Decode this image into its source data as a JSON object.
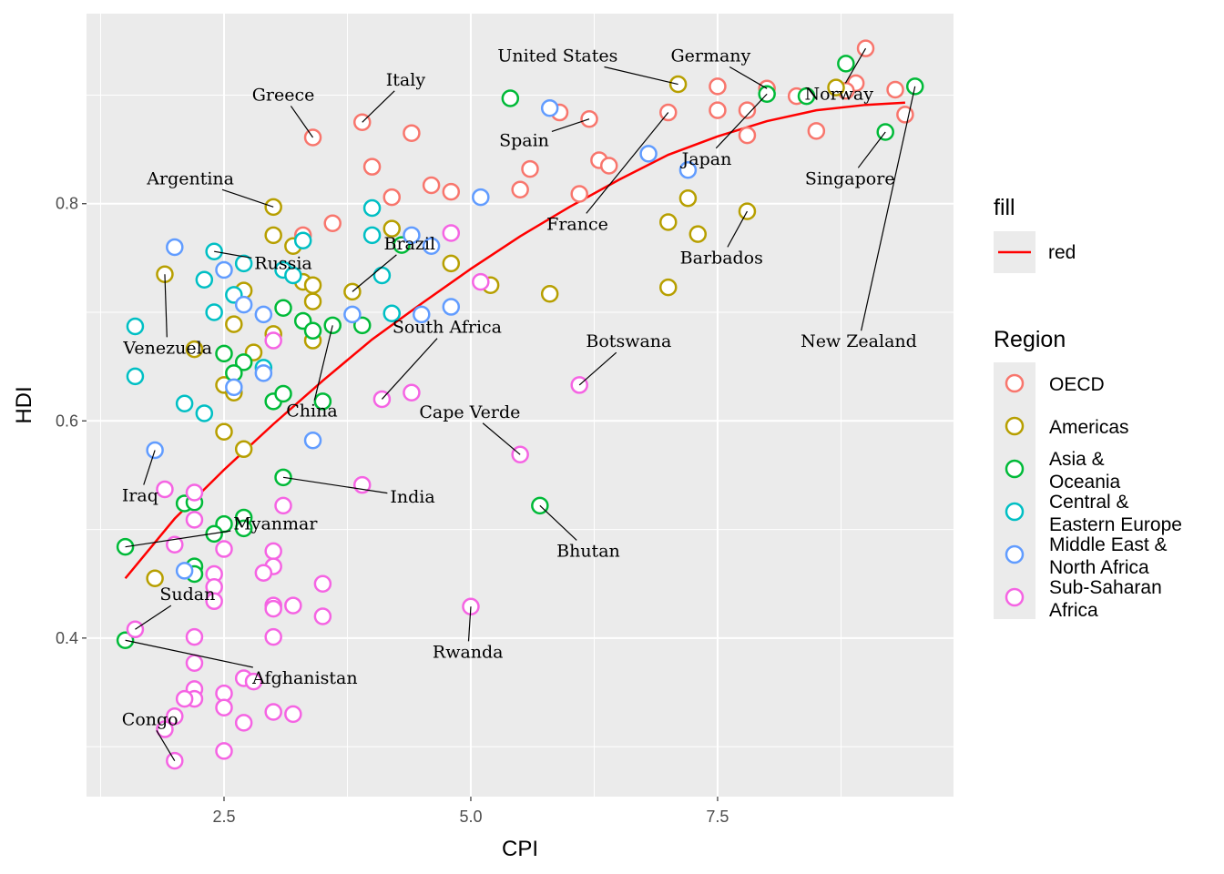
{
  "chart_data": {
    "type": "scatter",
    "xlabel": "CPI",
    "ylabel": "HDI",
    "xlim": [
      1.107,
      9.89
    ],
    "ylim": [
      0.254,
      0.975
    ],
    "xticks": [
      {
        "v": 2.5,
        "label": "2.5"
      },
      {
        "v": 5.0,
        "label": "5.0"
      },
      {
        "v": 7.5,
        "label": "7.5"
      }
    ],
    "yticks": [
      {
        "v": 0.4,
        "label": "0.4"
      },
      {
        "v": 0.6,
        "label": "0.6"
      },
      {
        "v": 0.8,
        "label": "0.8"
      }
    ],
    "grid": true,
    "series": [
      {
        "name": "OECD",
        "color": "#F8766D",
        "points": [
          [
            9.0,
            0.943
          ],
          [
            8.9,
            0.911
          ],
          [
            8.8,
            0.904
          ],
          [
            8.3,
            0.899
          ],
          [
            9.3,
            0.905
          ],
          [
            9.4,
            0.882
          ],
          [
            8.0,
            0.906
          ],
          [
            7.5,
            0.908
          ],
          [
            7.5,
            0.886
          ],
          [
            7.8,
            0.886
          ],
          [
            7.8,
            0.863
          ],
          [
            8.5,
            0.867
          ],
          [
            7.0,
            0.884
          ],
          [
            6.2,
            0.878
          ],
          [
            5.9,
            0.884
          ],
          [
            6.3,
            0.84
          ],
          [
            6.4,
            0.835
          ],
          [
            5.6,
            0.832
          ],
          [
            5.5,
            0.813
          ],
          [
            6.1,
            0.809
          ],
          [
            4.6,
            0.817
          ],
          [
            4.8,
            0.811
          ],
          [
            4.4,
            0.865
          ],
          [
            3.9,
            0.875
          ],
          [
            3.4,
            0.861
          ],
          [
            4.0,
            0.834
          ],
          [
            4.2,
            0.806
          ],
          [
            3.6,
            0.782
          ],
          [
            3.3,
            0.771
          ]
        ]
      },
      {
        "name": "Americas",
        "color": "#B79F00",
        "points": [
          [
            7.1,
            0.91
          ],
          [
            8.7,
            0.907
          ],
          [
            7.2,
            0.805
          ],
          [
            7.0,
            0.783
          ],
          [
            7.8,
            0.793
          ],
          [
            7.3,
            0.772
          ],
          [
            7.0,
            0.723
          ],
          [
            5.8,
            0.717
          ],
          [
            5.2,
            0.725
          ],
          [
            4.8,
            0.745
          ],
          [
            4.2,
            0.777
          ],
          [
            3.8,
            0.719
          ],
          [
            3.0,
            0.797
          ],
          [
            3.0,
            0.771
          ],
          [
            3.2,
            0.761
          ],
          [
            3.3,
            0.728
          ],
          [
            3.4,
            0.725
          ],
          [
            3.4,
            0.71
          ],
          [
            2.7,
            0.72
          ],
          [
            2.6,
            0.689
          ],
          [
            3.0,
            0.68
          ],
          [
            3.4,
            0.674
          ],
          [
            2.8,
            0.663
          ],
          [
            2.2,
            0.666
          ],
          [
            1.9,
            0.735
          ],
          [
            2.5,
            0.633
          ],
          [
            2.6,
            0.626
          ],
          [
            2.5,
            0.59
          ],
          [
            2.7,
            0.574
          ],
          [
            1.8,
            0.455
          ]
        ]
      },
      {
        "name": "Asia & Oceania",
        "color": "#00BA38",
        "points": [
          [
            8.8,
            0.929
          ],
          [
            9.5,
            0.908
          ],
          [
            8.0,
            0.901
          ],
          [
            8.4,
            0.899
          ],
          [
            9.2,
            0.866
          ],
          [
            5.4,
            0.897
          ],
          [
            4.3,
            0.762
          ],
          [
            3.1,
            0.704
          ],
          [
            3.3,
            0.692
          ],
          [
            3.4,
            0.683
          ],
          [
            3.6,
            0.688
          ],
          [
            3.9,
            0.688
          ],
          [
            2.5,
            0.662
          ],
          [
            2.7,
            0.654
          ],
          [
            2.6,
            0.644
          ],
          [
            3.0,
            0.618
          ],
          [
            3.1,
            0.625
          ],
          [
            3.5,
            0.618
          ],
          [
            3.1,
            0.548
          ],
          [
            5.7,
            0.522
          ],
          [
            2.1,
            0.524
          ],
          [
            2.2,
            0.525
          ],
          [
            2.7,
            0.511
          ],
          [
            2.5,
            0.505
          ],
          [
            2.7,
            0.501
          ],
          [
            2.4,
            0.496
          ],
          [
            1.5,
            0.484
          ],
          [
            2.2,
            0.466
          ],
          [
            2.2,
            0.459
          ],
          [
            1.5,
            0.398
          ]
        ]
      },
      {
        "name": "Central & Eastern Europe",
        "color": "#00BFC4",
        "points": [
          [
            1.6,
            0.687
          ],
          [
            1.6,
            0.641
          ],
          [
            2.4,
            0.756
          ],
          [
            2.7,
            0.745
          ],
          [
            2.3,
            0.73
          ],
          [
            2.6,
            0.716
          ],
          [
            2.4,
            0.7
          ],
          [
            2.1,
            0.616
          ],
          [
            2.3,
            0.607
          ],
          [
            2.9,
            0.649
          ],
          [
            3.3,
            0.766
          ],
          [
            3.1,
            0.739
          ],
          [
            3.2,
            0.734
          ],
          [
            4.0,
            0.796
          ],
          [
            4.0,
            0.771
          ],
          [
            4.1,
            0.734
          ],
          [
            4.2,
            0.699
          ]
        ]
      },
      {
        "name": "Middle East & North Africa",
        "color": "#619CFF",
        "points": [
          [
            2.0,
            0.76
          ],
          [
            2.5,
            0.739
          ],
          [
            2.7,
            0.707
          ],
          [
            2.9,
            0.698
          ],
          [
            2.9,
            0.644
          ],
          [
            2.6,
            0.631
          ],
          [
            3.4,
            0.582
          ],
          [
            1.8,
            0.573
          ],
          [
            2.1,
            0.462
          ],
          [
            3.8,
            0.698
          ],
          [
            4.4,
            0.771
          ],
          [
            4.6,
            0.761
          ],
          [
            4.5,
            0.698
          ],
          [
            4.8,
            0.705
          ],
          [
            5.1,
            0.806
          ],
          [
            5.8,
            0.888
          ],
          [
            6.8,
            0.846
          ],
          [
            7.2,
            0.831
          ]
        ]
      },
      {
        "name": "Sub-Saharan Africa",
        "color": "#F564E3",
        "points": [
          [
            3.0,
            0.674
          ],
          [
            4.8,
            0.773
          ],
          [
            5.1,
            0.728
          ],
          [
            4.1,
            0.62
          ],
          [
            4.4,
            0.626
          ],
          [
            6.1,
            0.633
          ],
          [
            5.5,
            0.569
          ],
          [
            3.9,
            0.541
          ],
          [
            1.9,
            0.537
          ],
          [
            2.2,
            0.534
          ],
          [
            3.1,
            0.522
          ],
          [
            2.2,
            0.509
          ],
          [
            2.0,
            0.486
          ],
          [
            2.5,
            0.482
          ],
          [
            3.0,
            0.48
          ],
          [
            3.0,
            0.466
          ],
          [
            2.9,
            0.46
          ],
          [
            2.4,
            0.459
          ],
          [
            2.4,
            0.447
          ],
          [
            2.4,
            0.434
          ],
          [
            3.5,
            0.45
          ],
          [
            3.0,
            0.43
          ],
          [
            3.0,
            0.427
          ],
          [
            3.2,
            0.43
          ],
          [
            3.5,
            0.42
          ],
          [
            5.0,
            0.429
          ],
          [
            1.6,
            0.408
          ],
          [
            2.2,
            0.401
          ],
          [
            3.0,
            0.401
          ],
          [
            2.2,
            0.377
          ],
          [
            2.7,
            0.363
          ],
          [
            2.8,
            0.36
          ],
          [
            2.2,
            0.353
          ],
          [
            2.2,
            0.344
          ],
          [
            2.1,
            0.344
          ],
          [
            2.5,
            0.349
          ],
          [
            2.5,
            0.336
          ],
          [
            2.0,
            0.328
          ],
          [
            3.0,
            0.332
          ],
          [
            3.2,
            0.33
          ],
          [
            2.7,
            0.322
          ],
          [
            1.9,
            0.316
          ],
          [
            2.5,
            0.296
          ],
          [
            2.0,
            0.287
          ]
        ]
      }
    ],
    "trend": {
      "name": "red",
      "color": "#FF0000",
      "x": [
        1.5,
        2,
        2.5,
        3,
        3.5,
        4,
        4.5,
        5,
        5.5,
        6,
        6.5,
        7,
        7.5,
        8,
        8.5,
        9,
        9.4
      ],
      "y": [
        0.455,
        0.51,
        0.555,
        0.597,
        0.637,
        0.675,
        0.708,
        0.74,
        0.77,
        0.797,
        0.822,
        0.845,
        0.862,
        0.876,
        0.886,
        0.891,
        0.893
      ]
    },
    "annotations": [
      {
        "text": "Greece",
        "lx": 3.1,
        "ly": 0.9,
        "px": 3.4,
        "py": 0.861
      },
      {
        "text": "Italy",
        "lx": 4.34,
        "ly": 0.914,
        "px": 3.9,
        "py": 0.875
      },
      {
        "text": "United States",
        "lx": 5.88,
        "ly": 0.936,
        "px": 7.1,
        "py": 0.91
      },
      {
        "text": "Germany",
        "lx": 7.43,
        "ly": 0.936,
        "px": 8.0,
        "py": 0.906
      },
      {
        "text": "Norway",
        "lx": 8.73,
        "ly": 0.901,
        "px": 9.0,
        "py": 0.943
      },
      {
        "text": "Spain",
        "lx": 5.54,
        "ly": 0.858,
        "px": 6.2,
        "py": 0.878
      },
      {
        "text": "Japan",
        "lx": 7.39,
        "ly": 0.841,
        "px": 8.0,
        "py": 0.901
      },
      {
        "text": "Singapore",
        "lx": 8.84,
        "ly": 0.823,
        "px": 9.2,
        "py": 0.866
      },
      {
        "text": "Argentina",
        "lx": 2.16,
        "ly": 0.823,
        "px": 3.0,
        "py": 0.797
      },
      {
        "text": "Brazil",
        "lx": 4.38,
        "ly": 0.763,
        "px": 3.8,
        "py": 0.719
      },
      {
        "text": "Russia",
        "lx": 3.1,
        "ly": 0.745,
        "px": 2.4,
        "py": 0.756
      },
      {
        "text": "France",
        "lx": 6.08,
        "ly": 0.781,
        "px": 7.0,
        "py": 0.884
      },
      {
        "text": "Barbados",
        "lx": 7.54,
        "ly": 0.75,
        "px": 7.8,
        "py": 0.793
      },
      {
        "text": "Venezuela",
        "lx": 1.93,
        "ly": 0.667,
        "px": 1.9,
        "py": 0.735
      },
      {
        "text": "South Africa",
        "lx": 4.76,
        "ly": 0.686,
        "px": 4.1,
        "py": 0.62
      },
      {
        "text": "Botswana",
        "lx": 6.6,
        "ly": 0.673,
        "px": 6.1,
        "py": 0.633
      },
      {
        "text": "New Zealand",
        "lx": 8.93,
        "ly": 0.673,
        "px": 9.5,
        "py": 0.908
      },
      {
        "text": "China",
        "lx": 3.39,
        "ly": 0.609,
        "px": 3.6,
        "py": 0.688
      },
      {
        "text": "Cape Verde",
        "lx": 4.99,
        "ly": 0.608,
        "px": 5.5,
        "py": 0.569
      },
      {
        "text": "Iraq",
        "lx": 1.65,
        "ly": 0.531,
        "px": 1.8,
        "py": 0.573
      },
      {
        "text": "India",
        "lx": 4.41,
        "ly": 0.53,
        "px": 3.1,
        "py": 0.548
      },
      {
        "text": "Myanmar",
        "lx": 3.02,
        "ly": 0.505,
        "px": 1.5,
        "py": 0.484
      },
      {
        "text": "Bhutan",
        "lx": 6.19,
        "ly": 0.48,
        "px": 5.7,
        "py": 0.522
      },
      {
        "text": "Sudan",
        "lx": 2.13,
        "ly": 0.44,
        "px": 1.6,
        "py": 0.408
      },
      {
        "text": "Rwanda",
        "lx": 4.97,
        "ly": 0.387,
        "px": 5.0,
        "py": 0.429
      },
      {
        "text": "Afghanistan",
        "lx": 3.32,
        "ly": 0.363,
        "px": 1.5,
        "py": 0.398
      },
      {
        "text": "Congo",
        "lx": 1.75,
        "ly": 0.325,
        "px": 2.0,
        "py": 0.287
      }
    ],
    "legend": {
      "placement": "right",
      "fill_title": "fill",
      "fill_label": "red",
      "region_title": "Region",
      "region_labels": [
        [
          "OECD"
        ],
        [
          "Americas"
        ],
        [
          "Asia &",
          "Oceania"
        ],
        [
          "Central &",
          "Eastern Europe"
        ],
        [
          "Middle East &",
          "North Africa"
        ],
        [
          "Sub-Saharan",
          "Africa"
        ]
      ]
    }
  }
}
